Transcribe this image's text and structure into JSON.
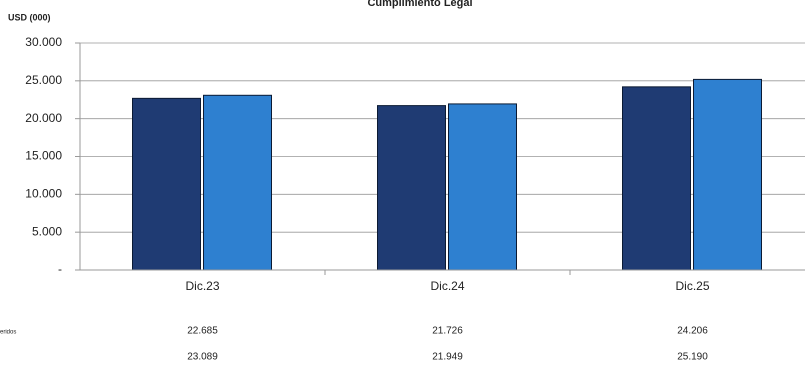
{
  "chart_data": {
    "type": "bar",
    "title": "Cumplimiento Legal",
    "y_label": "USD (000)",
    "categories": [
      "Dic.23",
      "Dic.24",
      "Dic.25"
    ],
    "series": [
      {
        "name": "eridos",
        "color": "#1f3b73",
        "values": [
          22685,
          21726,
          24206
        ],
        "value_labels": [
          "22.685",
          "21.726",
          "24.206"
        ]
      },
      {
        "color": "#2e80d0",
        "values": [
          23089,
          21949,
          25190
        ],
        "value_labels": [
          "23.089",
          "21.949",
          "25.190"
        ]
      }
    ],
    "ylim": [
      0,
      30000
    ],
    "yticks": [
      {
        "value": 0,
        "label": "-"
      },
      {
        "value": 5000,
        "label": "5.000"
      },
      {
        "value": 10000,
        "label": "10.000"
      },
      {
        "value": 15000,
        "label": "15.000"
      },
      {
        "value": 20000,
        "label": "20.000"
      },
      {
        "value": 25000,
        "label": "25.000"
      },
      {
        "value": 30000,
        "label": "30.000"
      }
    ],
    "grid": true
  }
}
